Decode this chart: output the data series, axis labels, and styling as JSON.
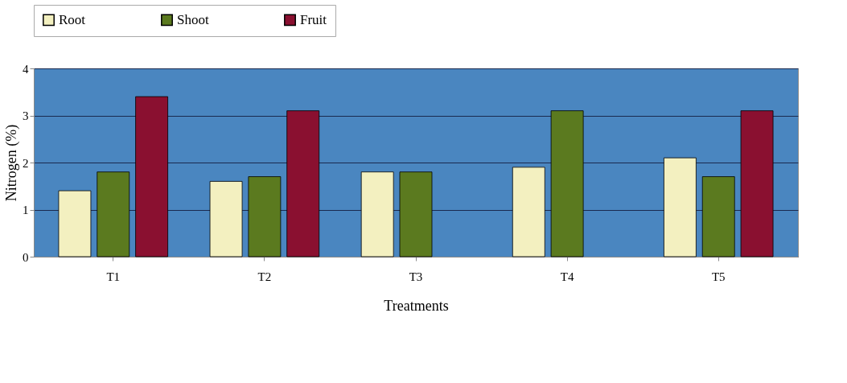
{
  "chart_data": {
    "type": "bar",
    "xlabel": "Treatments",
    "ylabel": "Nitrogen (%)",
    "categories": [
      "T1",
      "T2",
      "T3",
      "T4",
      "T5"
    ],
    "series": [
      {
        "name": "Root",
        "color": "#f3f0c0",
        "values": [
          1.4,
          1.6,
          1.8,
          1.9,
          2.1
        ]
      },
      {
        "name": "Shoot",
        "color": "#5b7a1f",
        "values": [
          1.8,
          1.7,
          1.8,
          3.1,
          1.7
        ]
      },
      {
        "name": "Fruit",
        "color": "#8a1030",
        "values": [
          3.4,
          3.1,
          null,
          null,
          3.1
        ]
      }
    ],
    "ylim": [
      0,
      4
    ],
    "yticks": [
      0,
      1,
      2,
      3,
      4
    ],
    "grid": "y",
    "legend": "top"
  }
}
